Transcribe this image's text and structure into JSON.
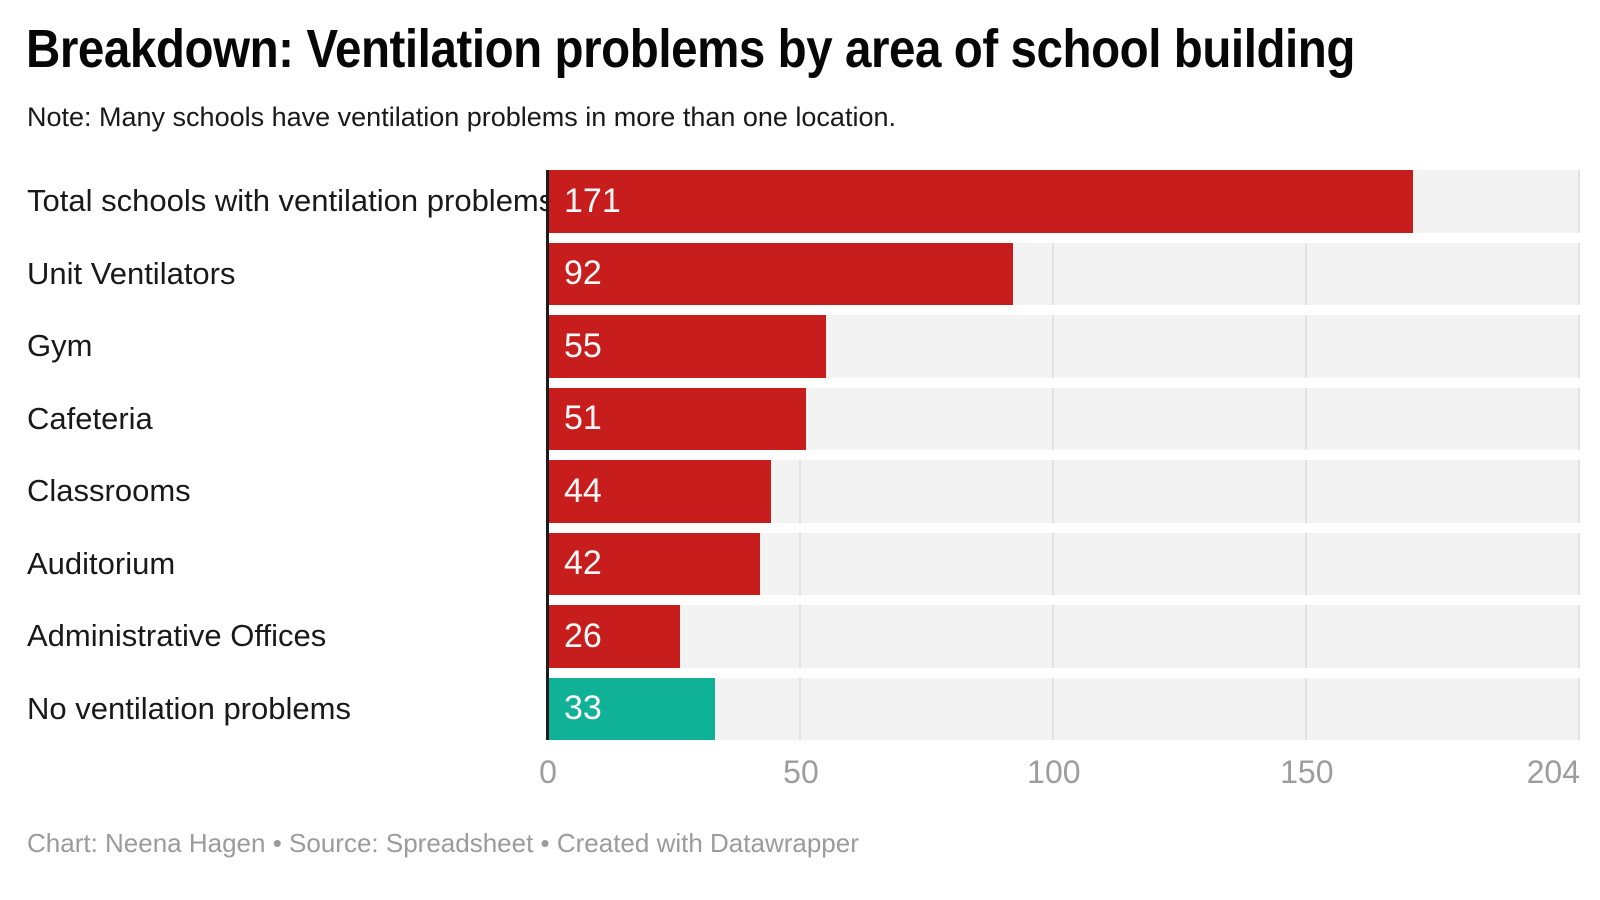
{
  "header": {
    "title": "Breakdown: Ventilation problems by area of school building",
    "note": "Note: Many schools have ventilation problems in more than one location."
  },
  "chart_data": {
    "type": "bar",
    "orientation": "horizontal",
    "title": "Breakdown: Ventilation problems by area of school building",
    "subtitle": "Note: Many schools have ventilation problems in more than one location.",
    "categories": [
      "Total schools with ventilation problems",
      "Unit Ventilators",
      "Gym",
      "Cafeteria",
      "Classrooms",
      "Auditorium",
      "Administrative Offices",
      "No ventilation problems"
    ],
    "values": [
      171,
      92,
      55,
      51,
      44,
      42,
      26,
      33
    ],
    "bar_colors": [
      "#c71e1d",
      "#c71e1d",
      "#c71e1d",
      "#c71e1d",
      "#c71e1d",
      "#c71e1d",
      "#c71e1d",
      "#0fb296"
    ],
    "value_labels_inside_bars": true,
    "axis": {
      "min": 0,
      "max": 204,
      "ticks": [
        0,
        50,
        100,
        150,
        204
      ]
    },
    "xlabel": "",
    "ylabel": "",
    "grid": "vertical gridlines at ticks",
    "legend": "none",
    "colors": {
      "problem_bar": "#c71e1d",
      "no_problem_bar": "#0fb296",
      "track": "#f3f3f3",
      "gridline": "#e2e2e2",
      "zero_axis_line": "#1c1c1c",
      "tick_label": "#9d9d9d",
      "value_label": "#ffffff"
    }
  },
  "footer": {
    "text": "Chart: Neena Hagen • Source: Spreadsheet • Created with Datawrapper"
  }
}
